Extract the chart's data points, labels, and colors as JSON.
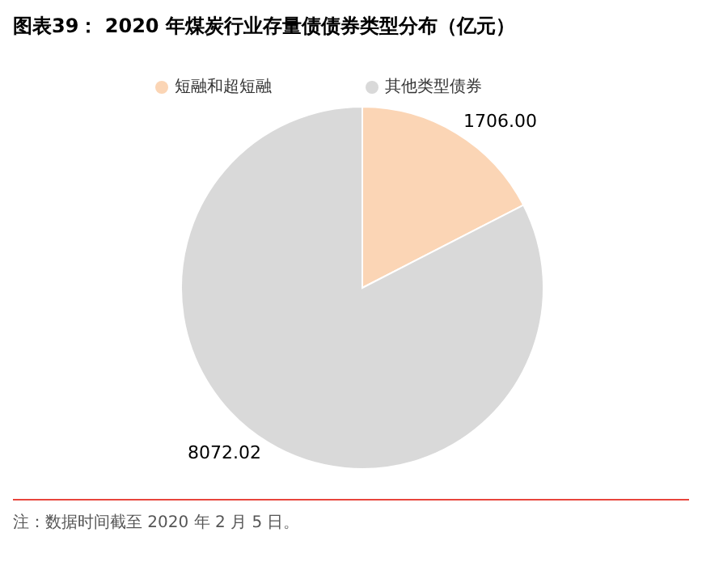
{
  "chart_data": {
    "type": "pie",
    "title": "图表39：  2020 年煤炭行业存量债债券类型分布（亿元）",
    "categories": [
      "短融和超短融",
      "其他类型债券"
    ],
    "values": [
      1706.0,
      8072.02
    ],
    "value_labels": [
      "1706.00",
      "8072.02"
    ],
    "colors": [
      "#fbd5b5",
      "#d9d9d9"
    ],
    "legend": "top",
    "annotations": [
      "注：数据时间截至 2020 年 2 月 5 日。"
    ]
  }
}
